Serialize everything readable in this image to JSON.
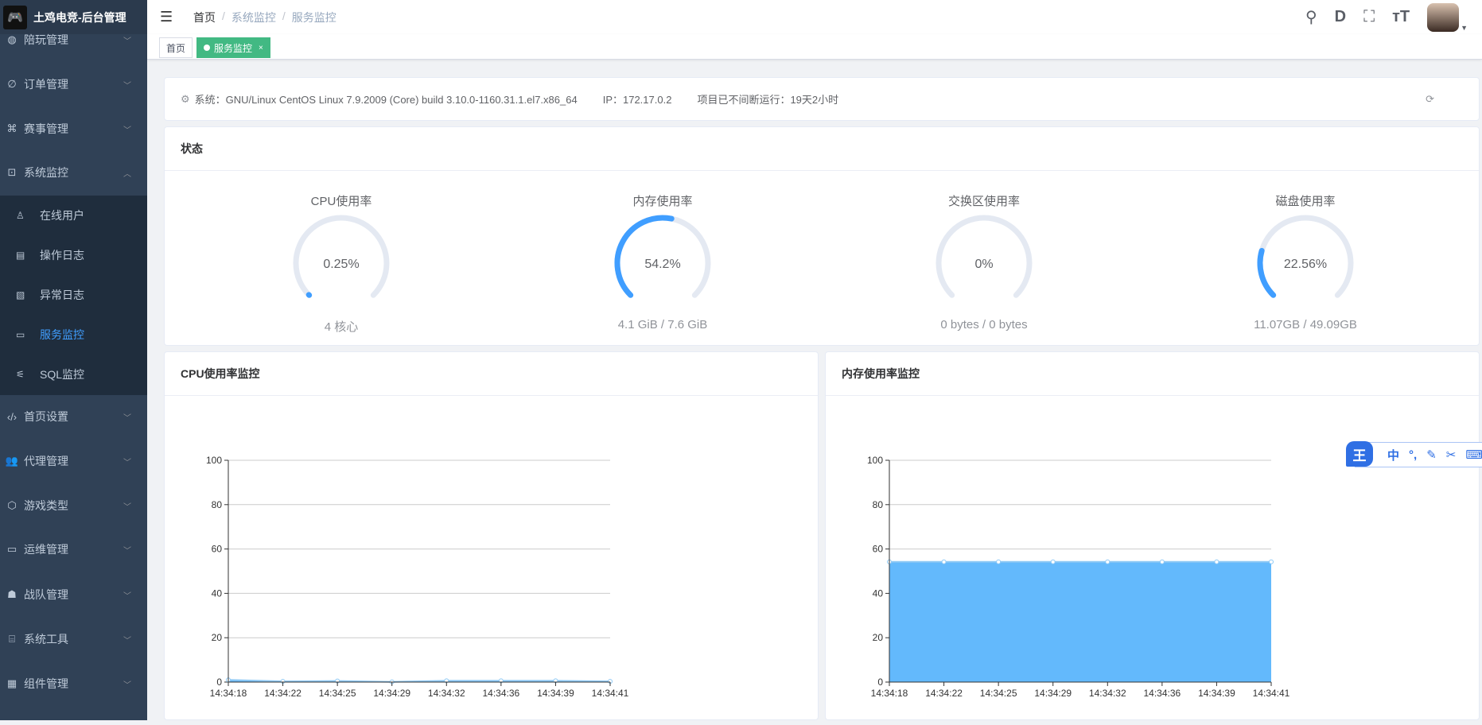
{
  "app": {
    "title": "土鸡电竞-后台管理"
  },
  "sidebar": {
    "items": [
      {
        "label": "陪玩管理",
        "icon": "globe-icon"
      },
      {
        "label": "订单管理",
        "icon": "link-icon"
      },
      {
        "label": "赛事管理",
        "icon": "cluster-icon"
      },
      {
        "label": "系统监控",
        "icon": "monitor-icon",
        "expanded": true
      },
      {
        "label": "首页设置",
        "icon": "code-icon"
      },
      {
        "label": "代理管理",
        "icon": "peoples-icon"
      },
      {
        "label": "游戏类型",
        "icon": "cube-icon"
      },
      {
        "label": "运维管理",
        "icon": "server-icon"
      },
      {
        "label": "战队管理",
        "icon": "team-icon"
      },
      {
        "label": "系统工具",
        "icon": "tool-icon"
      },
      {
        "label": "组件管理",
        "icon": "grid-icon"
      }
    ],
    "subitems": [
      {
        "label": "在线用户",
        "icon": "online-user-icon"
      },
      {
        "label": "操作日志",
        "icon": "form-log-icon"
      },
      {
        "label": "异常日志",
        "icon": "error-log-icon"
      },
      {
        "label": "服务监控",
        "icon": "server-monitor-icon",
        "active": true
      },
      {
        "label": "SQL监控",
        "icon": "sql-icon"
      }
    ]
  },
  "header": {
    "breadcrumb": [
      "首页",
      "系统监控",
      "服务监控"
    ]
  },
  "tags": [
    {
      "label": "首页"
    },
    {
      "label": "服务监控",
      "active": true,
      "close": "×"
    }
  ],
  "info": {
    "system": "系统：GNU/Linux CentOS Linux 7.9.2009 (Core) build 3.10.0-1160.31.1.el7.x86_64",
    "ip": "IP：172.17.0.2",
    "uptime": "项目已不间断运行：19天2小时"
  },
  "status": {
    "title": "状态",
    "gauges": [
      {
        "title": "CPU使用率",
        "value": "0.25%",
        "percent": 0.25,
        "sub": "4 核心"
      },
      {
        "title": "内存使用率",
        "value": "54.2%",
        "percent": 54.2,
        "sub": "4.1 GiB / 7.6 GiB"
      },
      {
        "title": "交换区使用率",
        "value": "0%",
        "percent": 0,
        "sub": "0 bytes / 0 bytes"
      },
      {
        "title": "磁盘使用率",
        "value": "22.56%",
        "percent": 22.56,
        "sub": "11.07GB / 49.09GB"
      }
    ]
  },
  "colors": {
    "accent": "#409eff",
    "gauge_track": "#e4e9f2",
    "sidebar": "#304156",
    "tag_active": "#42b983",
    "area": "#63b9fc"
  },
  "ime": {
    "logo": "王",
    "items": [
      "中",
      "°,",
      "✎",
      "✂",
      "⌨",
      "👕"
    ]
  },
  "chart_data": [
    {
      "type": "line",
      "title": "CPU使用率监控",
      "x": [
        "14:34:18",
        "14:34:22",
        "14:34:25",
        "14:34:29",
        "14:34:32",
        "14:34:36",
        "14:34:39",
        "14:34:41"
      ],
      "values": [
        1.0,
        0.3,
        0.5,
        0.1,
        0.6,
        0.6,
        0.6,
        0.3
      ],
      "ylim": [
        0,
        100
      ],
      "yticks": [
        0,
        20,
        40,
        60,
        80,
        100
      ],
      "grid": true,
      "area": true
    },
    {
      "type": "area",
      "title": "内存使用率监控",
      "x": [
        "14:34:18",
        "14:34:22",
        "14:34:25",
        "14:34:29",
        "14:34:32",
        "14:34:36",
        "14:34:39",
        "14:34:41"
      ],
      "values": [
        54.2,
        54.2,
        54.2,
        54.2,
        54.2,
        54.2,
        54.2,
        54.2
      ],
      "ylim": [
        0,
        100
      ],
      "yticks": [
        0,
        20,
        40,
        60,
        80,
        100
      ],
      "grid": true,
      "area": true
    }
  ]
}
